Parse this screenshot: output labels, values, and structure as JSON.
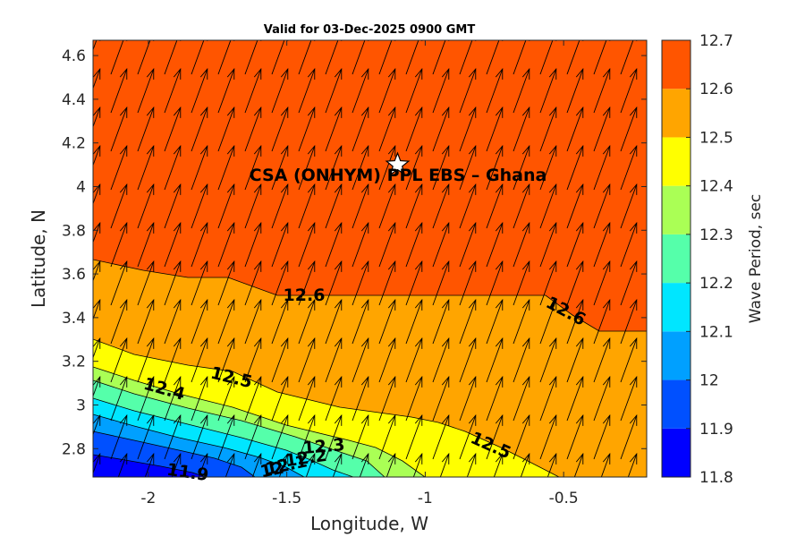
{
  "chart_data": {
    "type": "contour",
    "title": "Valid for 03-Dec-2025 0900 GMT",
    "xlabel": "Longitude, W",
    "ylabel": "Latitude, N",
    "xlim": [
      -2.2,
      -0.2
    ],
    "ylim": [
      2.67,
      4.67
    ],
    "xticks": [
      "-2",
      "-1.5",
      "-1",
      "-0.5"
    ],
    "yticks": [
      "2.8",
      "3",
      "3.2",
      "3.4",
      "3.6",
      "3.8",
      "4",
      "4.2",
      "4.4",
      "4.6"
    ],
    "colorbar": {
      "label": "Wave Period, sec",
      "ticks": [
        "11.8",
        "11.9",
        "12",
        "12.1",
        "12.2",
        "12.3",
        "12.4",
        "12.5",
        "12.6",
        "12.7"
      ],
      "levels": [
        11.8,
        11.9,
        12.0,
        12.1,
        12.2,
        12.3,
        12.4,
        12.5,
        12.6,
        12.7
      ],
      "colors": [
        "#0000ff",
        "#0050ff",
        "#00a0ff",
        "#00e6ff",
        "#55ffaa",
        "#aaff55",
        "#ffff00",
        "#ffa500",
        "#ff5500"
      ]
    },
    "contour_labels": [
      "12.6",
      "12.6",
      "12.5",
      "12.5",
      "12.4",
      "12.3",
      "12.2",
      "12.1",
      "12",
      "11.9"
    ],
    "annotation": {
      "text": "CSA (ONHYM) PPL EBS  – Ghana",
      "marker": "star",
      "lon": -1.1,
      "lat": 4.1
    },
    "vector_field": {
      "description": "wave direction arrows",
      "direction_deg_from_north": 20
    }
  }
}
